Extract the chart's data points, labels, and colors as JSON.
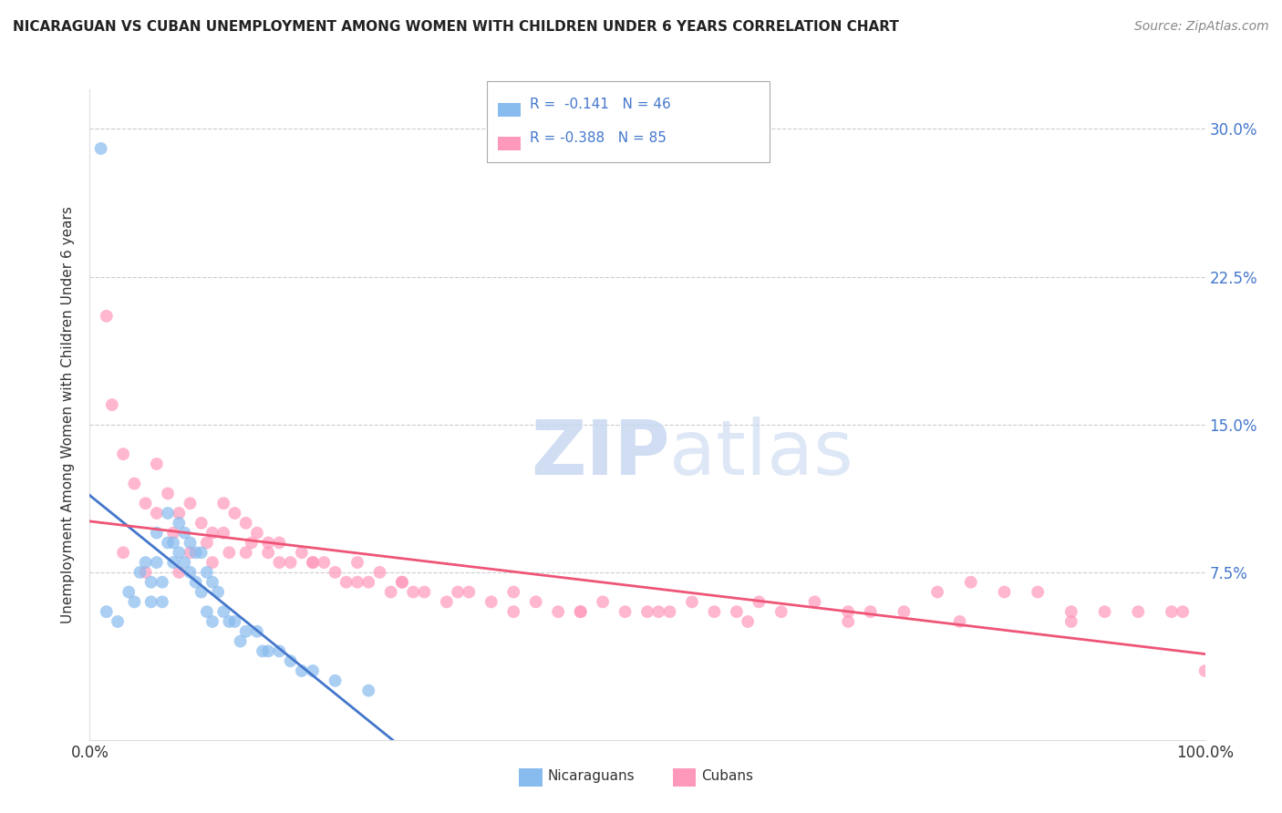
{
  "title": "NICARAGUAN VS CUBAN UNEMPLOYMENT AMONG WOMEN WITH CHILDREN UNDER 6 YEARS CORRELATION CHART",
  "source": "Source: ZipAtlas.com",
  "ylabel": "Unemployment Among Women with Children Under 6 years",
  "xlim": [
    0,
    100
  ],
  "ylim": [
    -1,
    32
  ],
  "ytick_vals": [
    0,
    7.5,
    15.0,
    22.5,
    30.0
  ],
  "ytick_labels": [
    "",
    "7.5%",
    "15.0%",
    "22.5%",
    "30.0%"
  ],
  "legend_line1": "R =  -0.141   N = 46",
  "legend_line2": "R = -0.388   N = 85",
  "color_nicaraguan": "#88BBEE",
  "color_cuban": "#FF99BB",
  "color_trend_blue": "#4477CC",
  "color_trend_pink": "#EE5577",
  "color_trend_dash": "#AACCDD",
  "color_axis_label": "#4477CC",
  "watermark_zip": "ZIP",
  "watermark_atlas": "atlas",
  "nicaraguan_x": [
    1.5,
    2.5,
    3.5,
    4.0,
    4.5,
    5.0,
    5.5,
    5.5,
    6.0,
    6.0,
    6.5,
    6.5,
    7.0,
    7.0,
    7.5,
    7.5,
    8.0,
    8.0,
    8.5,
    8.5,
    9.0,
    9.0,
    9.5,
    9.5,
    10.0,
    10.0,
    10.5,
    10.5,
    11.0,
    11.0,
    11.5,
    12.0,
    12.5,
    13.0,
    13.5,
    14.0,
    15.0,
    15.5,
    16.0,
    17.0,
    18.0,
    19.0,
    20.0,
    22.0,
    25.0,
    1.0
  ],
  "nicaraguan_y": [
    5.5,
    5.0,
    6.5,
    6.0,
    7.5,
    8.0,
    7.0,
    6.0,
    9.5,
    8.0,
    7.0,
    6.0,
    10.5,
    9.0,
    9.0,
    8.0,
    10.0,
    8.5,
    9.5,
    8.0,
    9.0,
    7.5,
    8.5,
    7.0,
    8.5,
    6.5,
    7.5,
    5.5,
    7.0,
    5.0,
    6.5,
    5.5,
    5.0,
    5.0,
    4.0,
    4.5,
    4.5,
    3.5,
    3.5,
    3.5,
    3.0,
    2.5,
    2.5,
    2.0,
    1.5,
    29.0
  ],
  "cuban_x": [
    1.5,
    2.0,
    3.0,
    4.0,
    5.0,
    6.0,
    7.0,
    7.5,
    8.0,
    9.0,
    10.0,
    10.5,
    11.0,
    12.0,
    12.5,
    13.0,
    14.0,
    14.5,
    15.0,
    16.0,
    17.0,
    18.0,
    19.0,
    20.0,
    21.0,
    22.0,
    23.0,
    24.0,
    25.0,
    26.0,
    27.0,
    28.0,
    29.0,
    30.0,
    32.0,
    34.0,
    36.0,
    38.0,
    40.0,
    42.0,
    44.0,
    46.0,
    48.0,
    50.0,
    52.0,
    54.0,
    56.0,
    58.0,
    60.0,
    62.0,
    65.0,
    68.0,
    70.0,
    73.0,
    76.0,
    79.0,
    82.0,
    85.0,
    88.0,
    91.0,
    94.0,
    97.0,
    100.0,
    3.0,
    5.0,
    8.0,
    11.0,
    14.0,
    17.0,
    20.0,
    24.0,
    28.0,
    33.0,
    38.0,
    44.0,
    51.0,
    59.0,
    68.0,
    78.0,
    88.0,
    98.0,
    6.0,
    9.0,
    12.0,
    16.0
  ],
  "cuban_y": [
    20.5,
    16.0,
    13.5,
    12.0,
    11.0,
    13.0,
    11.5,
    9.5,
    10.5,
    11.0,
    10.0,
    9.0,
    9.5,
    9.5,
    8.5,
    10.5,
    10.0,
    9.0,
    9.5,
    8.5,
    9.0,
    8.0,
    8.5,
    8.0,
    8.0,
    7.5,
    7.0,
    8.0,
    7.0,
    7.5,
    6.5,
    7.0,
    6.5,
    6.5,
    6.0,
    6.5,
    6.0,
    5.5,
    6.0,
    5.5,
    5.5,
    6.0,
    5.5,
    5.5,
    5.5,
    6.0,
    5.5,
    5.5,
    6.0,
    5.5,
    6.0,
    5.5,
    5.5,
    5.5,
    6.5,
    7.0,
    6.5,
    6.5,
    5.5,
    5.5,
    5.5,
    5.5,
    2.5,
    8.5,
    7.5,
    7.5,
    8.0,
    8.5,
    8.0,
    8.0,
    7.0,
    7.0,
    6.5,
    6.5,
    5.5,
    5.5,
    5.0,
    5.0,
    5.0,
    5.0,
    5.5,
    10.5,
    8.5,
    11.0,
    9.0
  ]
}
